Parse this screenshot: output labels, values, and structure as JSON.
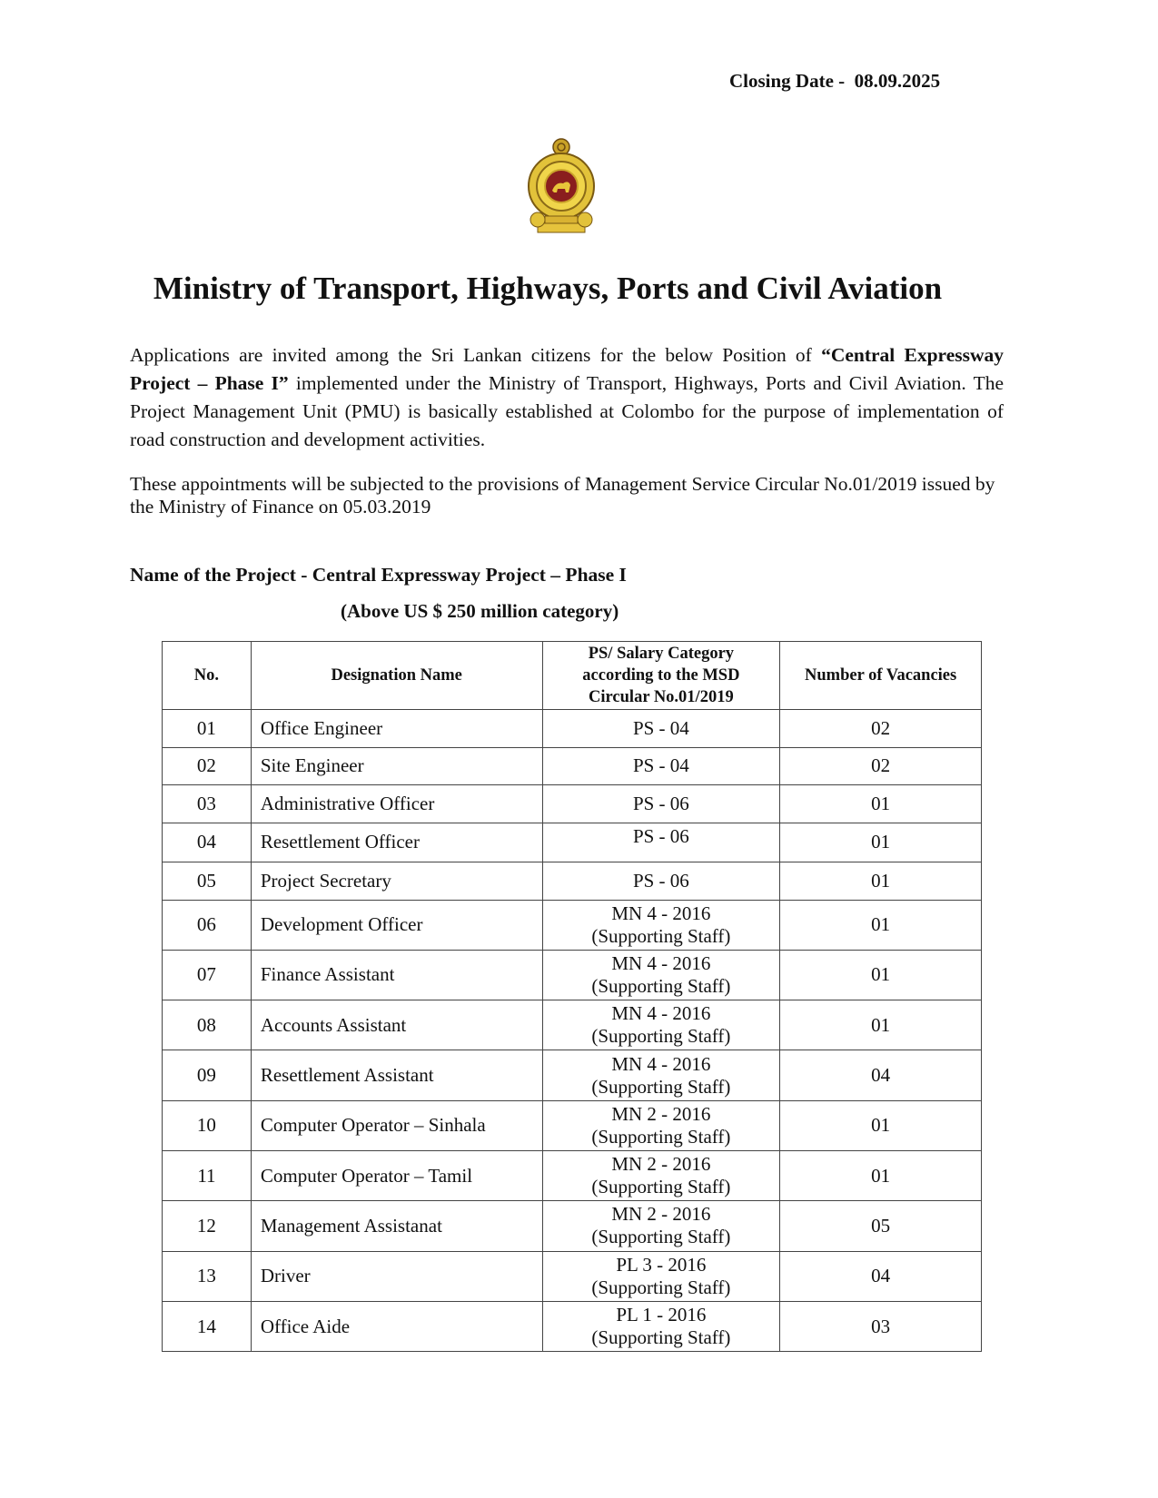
{
  "closing_date": {
    "label": "Closing Date -",
    "value": "08.09.2025"
  },
  "emblem": "sri-lanka-national-emblem",
  "title": "Ministry of Transport, Highways, Ports and Civil Aviation",
  "intro": {
    "part1": "Applications are invited among the Sri Lankan citizens for the below Position of ",
    "bold": "“Central Expressway Project – Phase I”",
    "part2": " implemented under the Ministry of Transport, Highways, Ports and Civil Aviation. The Project Management Unit (PMU) is basically established at Colombo for the purpose of implementation of road construction and development activities."
  },
  "circular_note": "These appointments will be subjected to the provisions of Management Service Circular No.01/2019 issued by the Ministry of Finance on 05.03.2019",
  "project": {
    "label": "Name of the Project",
    "name": " - Central Expressway Project – Phase I",
    "category": "(Above US $ 250 million category)"
  },
  "table": {
    "headers": [
      "No.",
      "Designation Name",
      "PS/ Salary Category according to the MSD Circular No.01/2019",
      "Number of Vacancies"
    ],
    "rows": [
      {
        "no": "01",
        "designation": "Office Engineer",
        "category": "PS - 04",
        "category2": "",
        "vacancies": "02"
      },
      {
        "no": "02",
        "designation": "Site Engineer",
        "category": "PS - 04",
        "category2": "",
        "vacancies": "02"
      },
      {
        "no": "03",
        "designation": "Administrative Officer",
        "category": "PS - 06",
        "category2": "",
        "vacancies": "01"
      },
      {
        "no": "04",
        "designation": "Resettlement Officer",
        "category": "PS - 06",
        "category2": "",
        "vacancies": "01"
      },
      {
        "no": "05",
        "designation": "Project Secretary",
        "category": "PS - 06",
        "category2": "",
        "vacancies": "01"
      },
      {
        "no": "06",
        "designation": "Development Officer",
        "category": "MN 4 - 2016",
        "category2": "(Supporting Staff)",
        "vacancies": "01"
      },
      {
        "no": "07",
        "designation": "Finance Assistant",
        "category": "MN 4 - 2016",
        "category2": "(Supporting Staff)",
        "vacancies": "01"
      },
      {
        "no": "08",
        "designation": "Accounts Assistant",
        "category": "MN 4 - 2016",
        "category2": "(Supporting Staff)",
        "vacancies": "01"
      },
      {
        "no": "09",
        "designation": "Resettlement Assistant",
        "category": "MN 4 - 2016",
        "category2": "(Supporting Staff)",
        "vacancies": "04"
      },
      {
        "no": "10",
        "designation": "Computer Operator – Sinhala",
        "category": "MN 2 - 2016",
        "category2": "(Supporting Staff)",
        "vacancies": "01"
      },
      {
        "no": "11",
        "designation": "Computer Operator – Tamil",
        "category": "MN 2 - 2016",
        "category2": "(Supporting Staff)",
        "vacancies": "01"
      },
      {
        "no": "12",
        "designation": "Management Assistanat",
        "category": "MN 2 - 2016",
        "category2": "(Supporting Staff)",
        "vacancies": "05"
      },
      {
        "no": "13",
        "designation": "Driver",
        "category": "PL 3 - 2016",
        "category2": "(Supporting Staff)",
        "vacancies": "04"
      },
      {
        "no": "14",
        "designation": "Office Aide",
        "category": "PL 1 - 2016",
        "category2": "(Supporting Staff)",
        "vacancies": "03"
      }
    ]
  }
}
